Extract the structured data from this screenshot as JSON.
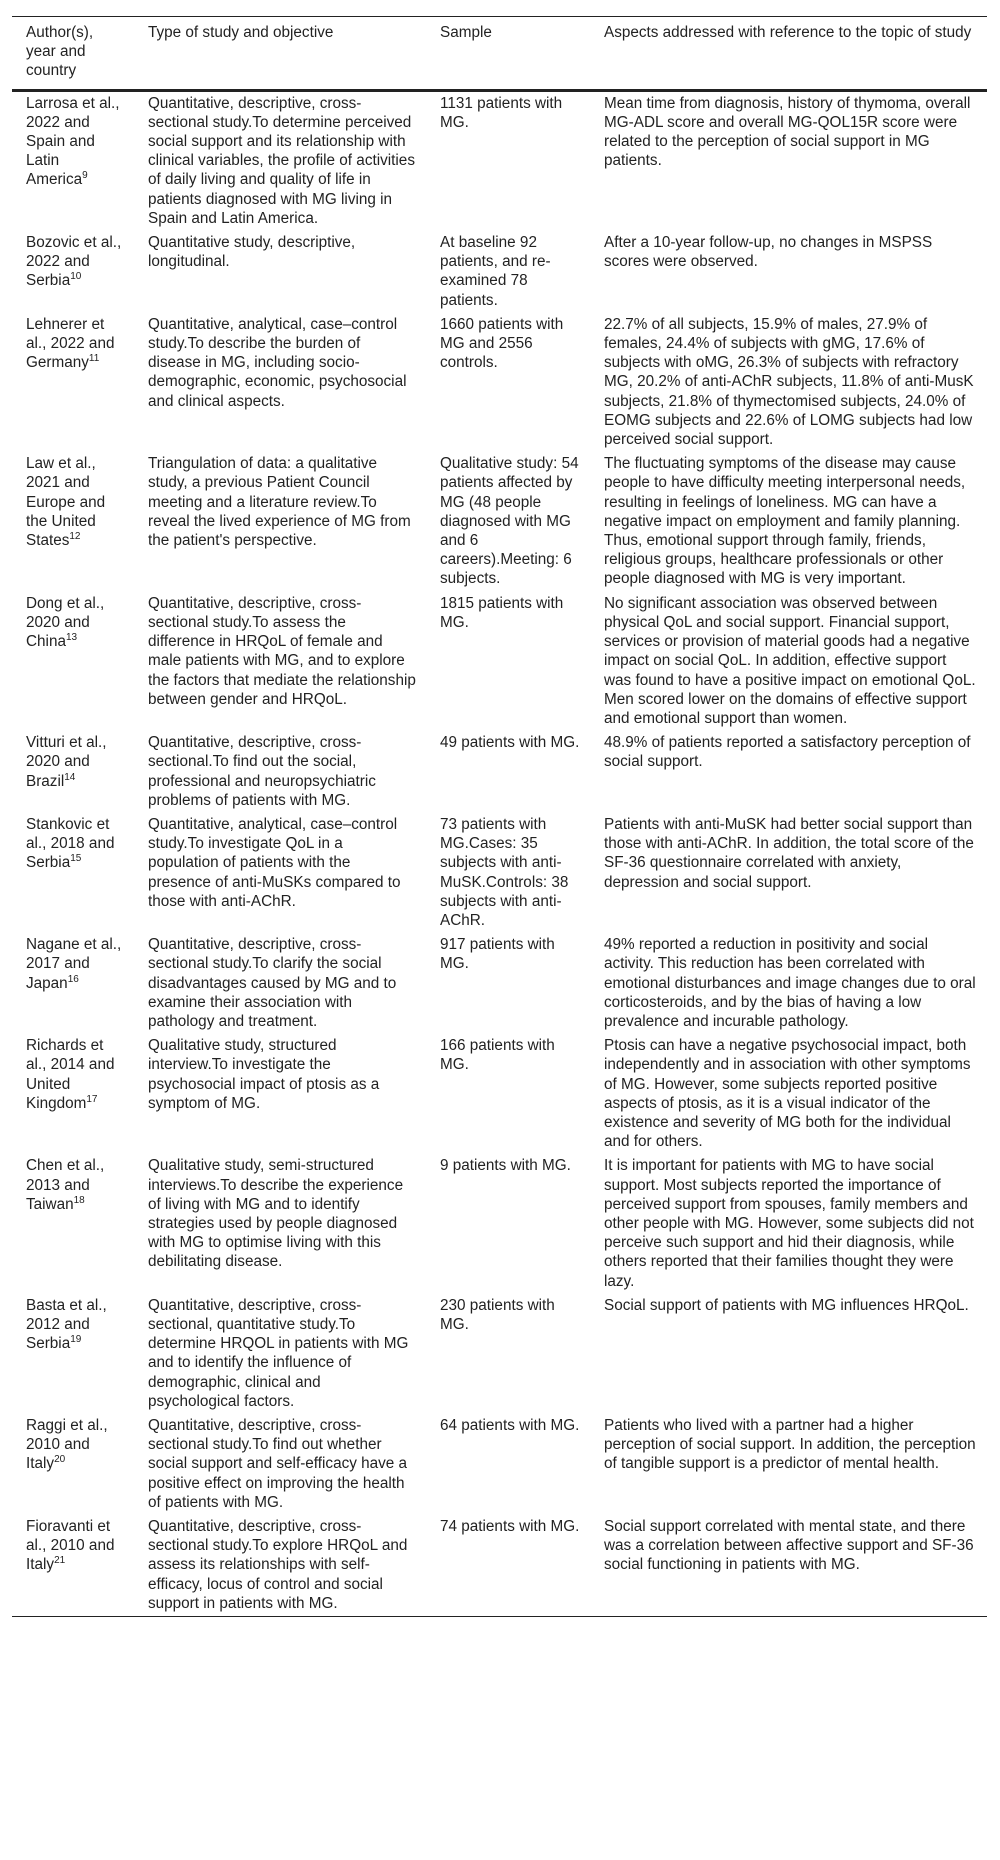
{
  "headers": [
    "Author(s), year and country",
    "Type of study and objective",
    "Sample",
    "Aspects addressed with reference to the topic of study"
  ],
  "rows": [
    {
      "author": "Larrosa et al., 2022 and Spain and Latin America",
      "ref": "9",
      "type": "Quantitative, descriptive, cross-sectional study.To determine perceived social support and its relationship with clinical variables, the profile of activities of daily living and quality of life in patients diagnosed with MG living in Spain and Latin America.",
      "sample": "1131 patients with MG.",
      "aspects": "Mean time from diagnosis, history of thymoma, overall MG-ADL score and overall MG-QOL15R score were related to the perception of social support in MG patients."
    },
    {
      "author": "Bozovic et al., 2022 and Serbia",
      "ref": "10",
      "type": "Quantitative study, descriptive, longitudinal.",
      "sample": "At baseline 92 patients, and re-examined 78 patients.",
      "aspects": "After a 10-year follow-up, no changes in MSPSS scores were observed."
    },
    {
      "author": "Lehnerer et al., 2022 and Germany",
      "ref": "11",
      "type": "Quantitative, analytical, case–control study.To describe the burden of disease in MG, including socio-demographic, economic, psychosocial and clinical aspects.",
      "sample": "1660 patients with MG and 2556 controls.",
      "aspects": "22.7% of all subjects, 15.9% of males, 27.9% of females, 24.4% of subjects with gMG, 17.6% of subjects with oMG, 26.3% of subjects with refractory MG, 20.2% of anti-AChR subjects, 11.8% of anti-MusK subjects, 21.8% of thymectomised subjects, 24.0% of EOMG subjects and 22.6% of LOMG subjects had low perceived social support."
    },
    {
      "author": "Law et al., 2021 and Europe and the United States",
      "ref": "12",
      "type": "Triangulation of data: a qualitative study, a previous Patient Council meeting and a literature review.To reveal the lived experience of MG from the patient's perspective.",
      "sample": "Qualitative study: 54 patients affected by MG (48 people diagnosed with MG and 6 careers).Meeting: 6 subjects.",
      "aspects": "The fluctuating symptoms of the disease may cause people to have difficulty meeting interpersonal needs, resulting in feelings of loneliness. MG can have a negative impact on employment and family planning. Thus, emotional support through family, friends, religious groups, healthcare professionals or other people diagnosed with MG is very important."
    },
    {
      "author": "Dong et al., 2020 and China",
      "ref": "13",
      "type": "Quantitative, descriptive, cross-sectional study.To assess the difference in HRQoL of female and male patients with MG, and to explore the factors that mediate the relationship between gender and HRQoL.",
      "sample": "1815 patients with MG.",
      "aspects": "No significant association was observed between physical QoL and social support. Financial support, services or provision of material goods had a negative impact on social QoL. In addition, effective support was found to have a positive impact on emotional QoL. Men scored lower on the domains of effective support and emotional support than women."
    },
    {
      "author": "Vitturi et al., 2020 and Brazil",
      "ref": "14",
      "type": "Quantitative, descriptive, cross-sectional.To find out the social, professional and neuropsychiatric problems of patients with MG.",
      "sample": "49 patients with MG.",
      "aspects": "48.9% of patients reported a satisfactory perception of social support."
    },
    {
      "author": "Stankovic et al., 2018 and Serbia",
      "ref": "15",
      "type": "Quantitative, analytical, case–control study.To investigate QoL in a population of patients with the presence of anti-MuSKs compared to those with anti-AChR.",
      "sample": "73 patients with MG.Cases: 35 subjects with anti-MuSK.Controls: 38 subjects with anti-AChR.",
      "aspects": "Patients with anti-MuSK had better social support than those with anti-AChR. In addition, the total score of the SF-36 questionnaire correlated with anxiety, depression and social support."
    },
    {
      "author": "Nagane et al., 2017 and Japan",
      "ref": "16",
      "type": "Quantitative, descriptive, cross-sectional study.To clarify the social disadvantages caused by MG and to examine their association with pathology and treatment.",
      "sample": "917 patients with MG.",
      "aspects": "49% reported a reduction in positivity and social activity. This reduction has been correlated with emotional disturbances and image changes due to oral corticosteroids, and by the bias of having a low prevalence and incurable pathology."
    },
    {
      "author": "Richards et al., 2014 and United Kingdom",
      "ref": "17",
      "type": "Qualitative study, structured interview.To investigate the psychosocial impact of ptosis as a symptom of MG.",
      "sample": "166 patients with MG.",
      "aspects": "Ptosis can have a negative psychosocial impact, both independently and in association with other symptoms of MG. However, some subjects reported positive aspects of ptosis, as it is a visual indicator of the existence and severity of MG both for the individual and for others."
    },
    {
      "author": "Chen et al., 2013 and Taiwan",
      "ref": "18",
      "type": "Qualitative study, semi-structured interviews.To describe the experience of living with MG and to identify strategies used by people diagnosed with MG to optimise living with this debilitating disease.",
      "sample": "9 patients with MG.",
      "aspects": "It is important for patients with MG to have social support. Most subjects reported the importance of perceived support from spouses, family members and other people with MG. However, some subjects did not perceive such support and hid their diagnosis, while others reported that their families thought they were lazy."
    },
    {
      "author": "Basta et al., 2012 and Serbia",
      "ref": "19",
      "type": "Quantitative, descriptive, cross-sectional, quantitative study.To determine HRQOL in patients with MG and to identify the influence of demographic, clinical and psychological factors.",
      "sample": "230 patients with MG.",
      "aspects": "Social support of patients with MG influences HRQoL."
    },
    {
      "author": "Raggi et al., 2010 and Italy",
      "ref": "20",
      "type": "Quantitative, descriptive, cross-sectional study.To find out whether social support and self-efficacy have a positive effect on improving the health of patients with MG.",
      "sample": "64 patients with MG.",
      "aspects": "Patients who lived with a partner had a higher perception of social support. In addition, the perception of tangible support is a predictor of mental health."
    },
    {
      "author": "Fioravanti et al., 2010 and Italy",
      "ref": "21",
      "type": "Quantitative, descriptive, cross-sectional study.To explore HRQoL and assess its relationships with self-efficacy, locus of control and social support in patients with MG.",
      "sample": "74 patients with MG.",
      "aspects": "Social support correlated with mental state, and there was a correlation between affective support and SF-36 social functioning in patients with MG."
    }
  ]
}
